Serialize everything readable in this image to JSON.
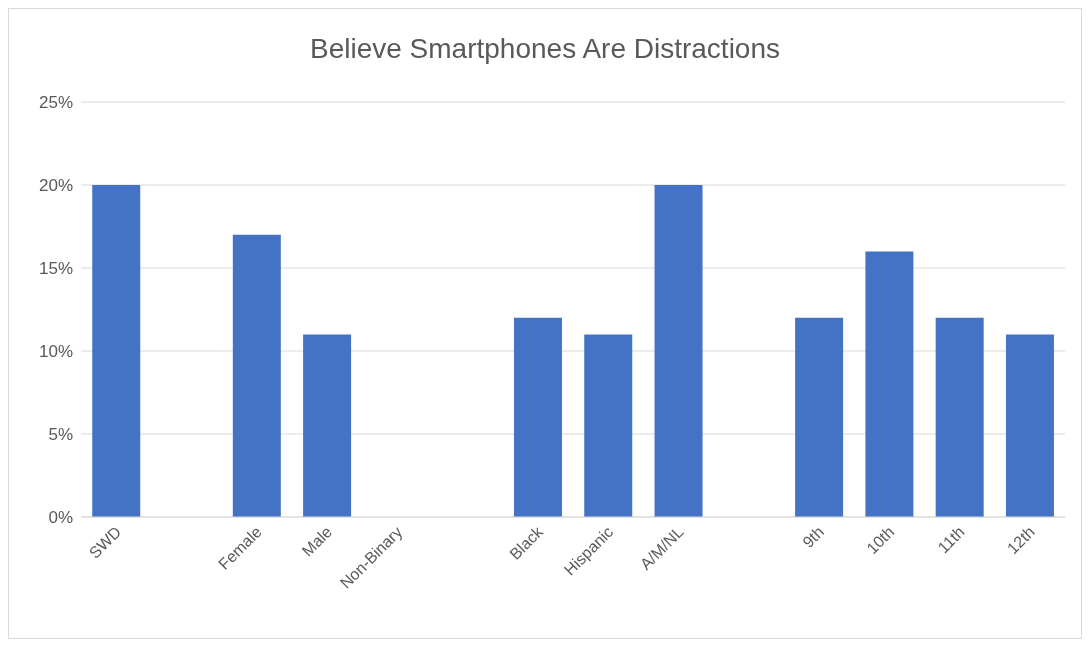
{
  "chart_data": {
    "type": "bar",
    "title": "Believe Smartphones Are Distractions",
    "categories": [
      "SWD",
      null,
      "Female",
      "Male",
      "Non-Binary",
      null,
      "Black",
      "Hispanic",
      "A/M/NL",
      null,
      "9th",
      "10th",
      "11th",
      "12th"
    ],
    "values": [
      20,
      null,
      17,
      11,
      null,
      null,
      12,
      11,
      20,
      null,
      12,
      16,
      12,
      11
    ],
    "color": "#4472c4",
    "ylim": [
      0,
      25
    ],
    "yticks": [
      {
        "value": 0,
        "label": "0%"
      },
      {
        "value": 5,
        "label": "5%"
      },
      {
        "value": 10,
        "label": "10%"
      },
      {
        "value": 15,
        "label": "15%"
      },
      {
        "value": 20,
        "label": "20%"
      },
      {
        "value": 25,
        "label": "25%"
      }
    ],
    "grid": "y"
  }
}
